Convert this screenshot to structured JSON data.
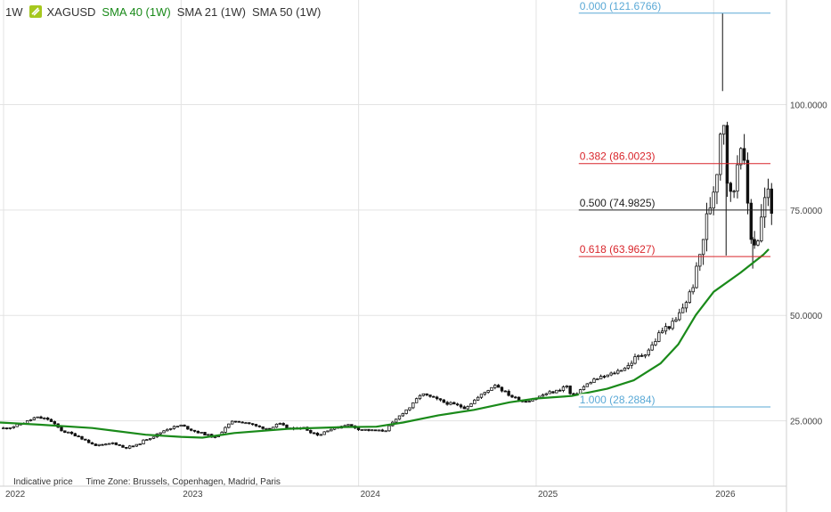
{
  "header": {
    "interval": "1W",
    "symbol": "XAGUSD",
    "indicators": [
      "SMA 40 (1W)",
      "SMA 21 (1W)",
      "SMA 50 (1W)"
    ]
  },
  "footer": {
    "note": "Indicative price",
    "timezone": "Time Zone: Brussels, Copenhagen, Madrid, Paris"
  },
  "colors": {
    "sma": "#1a8a1a",
    "fib_extreme": "#5aa9d6",
    "fib_red": "#d9262c",
    "fib_mid": "#222222",
    "grid": "#e3e3e3",
    "candle_up": "#ffffff",
    "candle_down": "#111111",
    "symbol_icon": "#a6c81e"
  },
  "chart_data": {
    "type": "candlestick",
    "title": "XAGUSD",
    "interval": "1W",
    "x_ticks": [
      {
        "label": "2022",
        "t": 2022.0
      },
      {
        "label": "2023",
        "t": 2023.0
      },
      {
        "label": "2024",
        "t": 2024.0
      },
      {
        "label": "2025",
        "t": 2025.0
      },
      {
        "label": "2026",
        "t": 2026.0
      }
    ],
    "xlim": [
      2021.98,
      2026.41
    ],
    "y_ticks": [
      {
        "label": "25.0000",
        "v": 25
      },
      {
        "label": "50.0000",
        "v": 50
      },
      {
        "label": "75.0000",
        "v": 75
      },
      {
        "label": "100.0000",
        "v": 100
      }
    ],
    "ylim": [
      9.5,
      124.8
    ],
    "fibonacci": [
      {
        "label": "0.000 (121.6766)",
        "value": 121.6766,
        "role": "extreme"
      },
      {
        "label": "0.382 (86.0023)",
        "value": 86.0023,
        "role": "red"
      },
      {
        "label": "0.500 (74.9825)",
        "value": 74.9825,
        "role": "mid"
      },
      {
        "label": "0.618 (63.9627)",
        "value": 63.9627,
        "role": "red"
      },
      {
        "label": "1.000 (28.2884)",
        "value": 28.2884,
        "role": "extreme"
      }
    ],
    "fib_x_start": 2025.24,
    "fib_x_end": 2026.32,
    "price_path": [
      [
        2021.98,
        23.1
      ],
      [
        2022.05,
        23.6
      ],
      [
        2022.12,
        24.6
      ],
      [
        2022.18,
        25.8
      ],
      [
        2022.25,
        25.4
      ],
      [
        2022.33,
        22.6
      ],
      [
        2022.42,
        21.4
      ],
      [
        2022.5,
        19.4
      ],
      [
        2022.55,
        19.1
      ],
      [
        2022.62,
        19.8
      ],
      [
        2022.68,
        18.6
      ],
      [
        2022.75,
        19.2
      ],
      [
        2022.8,
        20.6
      ],
      [
        2022.85,
        21.4
      ],
      [
        2022.92,
        23.1
      ],
      [
        2023.0,
        23.9
      ],
      [
        2023.08,
        22.5
      ],
      [
        2023.13,
        21.9
      ],
      [
        2023.2,
        20.9
      ],
      [
        2023.25,
        23.6
      ],
      [
        2023.3,
        25.0
      ],
      [
        2023.37,
        24.6
      ],
      [
        2023.43,
        23.6
      ],
      [
        2023.5,
        23.1
      ],
      [
        2023.55,
        24.3
      ],
      [
        2023.62,
        22.9
      ],
      [
        2023.68,
        23.6
      ],
      [
        2023.73,
        22.4
      ],
      [
        2023.78,
        21.6
      ],
      [
        2023.82,
        22.8
      ],
      [
        2023.88,
        23.4
      ],
      [
        2023.93,
        24.2
      ],
      [
        2024.0,
        23.1
      ],
      [
        2024.05,
        22.8
      ],
      [
        2024.1,
        22.6
      ],
      [
        2024.15,
        22.7
      ],
      [
        2024.2,
        24.8
      ],
      [
        2024.25,
        27.0
      ],
      [
        2024.3,
        28.6
      ],
      [
        2024.35,
        31.4
      ],
      [
        2024.42,
        30.4
      ],
      [
        2024.48,
        29.4
      ],
      [
        2024.55,
        28.7
      ],
      [
        2024.6,
        28.1
      ],
      [
        2024.65,
        29.8
      ],
      [
        2024.7,
        31.4
      ],
      [
        2024.77,
        33.7
      ],
      [
        2024.82,
        31.9
      ],
      [
        2024.87,
        30.6
      ],
      [
        2024.93,
        29.6
      ],
      [
        2025.0,
        30.4
      ],
      [
        2025.05,
        31.4
      ],
      [
        2025.12,
        32.1
      ],
      [
        2025.17,
        33.4
      ],
      [
        2025.2,
        30.6
      ],
      [
        2025.27,
        33.1
      ],
      [
        2025.32,
        34.7
      ],
      [
        2025.4,
        35.7
      ],
      [
        2025.45,
        36.6
      ],
      [
        2025.52,
        38.1
      ],
      [
        2025.55,
        39.6
      ],
      [
        2025.6,
        40.7
      ],
      [
        2025.65,
        42.6
      ],
      [
        2025.7,
        46.1
      ],
      [
        2025.75,
        47.6
      ],
      [
        2025.78,
        48.1
      ],
      [
        2025.82,
        51.4
      ],
      [
        2025.86,
        54.6
      ],
      [
        2025.9,
        59.1
      ],
      [
        2025.94,
        68.4
      ],
      [
        2025.97,
        74.4
      ],
      [
        2026.0,
        80.6
      ],
      [
        2026.03,
        88.6
      ],
      [
        2026.05,
        103.2
      ],
      [
        2026.07,
        85.6
      ],
      [
        2026.09,
        77.1
      ],
      [
        2026.12,
        81.1
      ],
      [
        2026.15,
        94.2
      ],
      [
        2026.18,
        80.6
      ],
      [
        2026.21,
        69.6
      ],
      [
        2026.24,
        66.6
      ],
      [
        2026.27,
        73.1
      ],
      [
        2026.3,
        80.1
      ],
      [
        2026.32,
        75.1
      ],
      [
        2026.33,
        73.6
      ]
    ],
    "spikes": [
      {
        "t": 2026.05,
        "high": 121.6766
      },
      {
        "t": 2026.07,
        "low": 64.2
      },
      {
        "t": 2026.22,
        "low": 61.1
      }
    ],
    "sma40_path": [
      [
        2021.98,
        24.6
      ],
      [
        2022.2,
        24.1
      ],
      [
        2022.5,
        23.3
      ],
      [
        2022.8,
        21.7
      ],
      [
        2023.0,
        21.2
      ],
      [
        2023.12,
        21.0
      ],
      [
        2023.3,
        22.1
      ],
      [
        2023.6,
        23.1
      ],
      [
        2023.9,
        23.5
      ],
      [
        2024.1,
        23.6
      ],
      [
        2024.25,
        24.6
      ],
      [
        2024.45,
        26.3
      ],
      [
        2024.65,
        27.6
      ],
      [
        2024.85,
        29.4
      ],
      [
        2025.0,
        30.3
      ],
      [
        2025.2,
        30.9
      ],
      [
        2025.4,
        32.6
      ],
      [
        2025.55,
        34.6
      ],
      [
        2025.7,
        38.6
      ],
      [
        2025.8,
        43.1
      ],
      [
        2025.9,
        50.1
      ],
      [
        2026.0,
        55.6
      ],
      [
        2026.15,
        60.1
      ],
      [
        2026.28,
        64.4
      ],
      [
        2026.31,
        65.7
      ]
    ]
  }
}
